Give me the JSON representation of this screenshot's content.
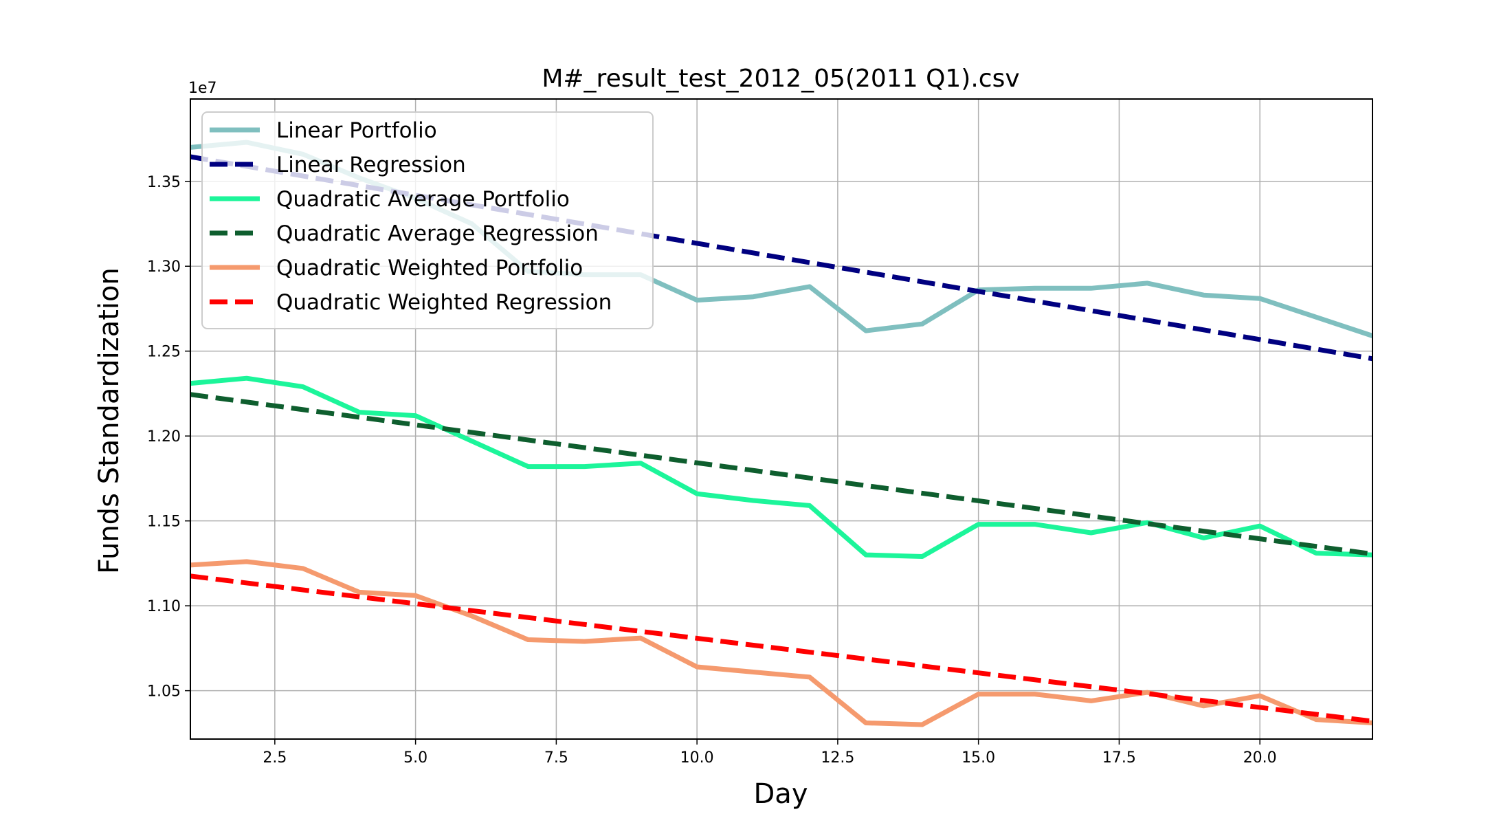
{
  "chart_data": {
    "type": "line",
    "title": "M#_result_test_2012_05(2011 Q1).csv",
    "xlabel": "Day",
    "ylabel": "Funds Standardization",
    "y_offset_label": "1e7",
    "xlim": [
      1,
      22
    ],
    "ylim": [
      1.0215,
      1.3985
    ],
    "x_ticks": [
      2.5,
      5.0,
      7.5,
      10.0,
      12.5,
      15.0,
      17.5,
      20.0
    ],
    "x_tick_labels": [
      "2.5",
      "5.0",
      "7.5",
      "10.0",
      "12.5",
      "15.0",
      "17.5",
      "20.0"
    ],
    "y_ticks": [
      1.05,
      1.1,
      1.15,
      1.2,
      1.25,
      1.3,
      1.35
    ],
    "y_tick_labels": [
      "1.05",
      "1.10",
      "1.15",
      "1.20",
      "1.25",
      "1.30",
      "1.35"
    ],
    "grid": true,
    "legend_position": "top-left",
    "x": [
      1,
      2,
      3,
      4,
      5,
      6,
      7,
      8,
      9,
      10,
      11,
      12,
      13,
      14,
      15,
      16,
      17,
      18,
      19,
      20,
      21,
      22
    ],
    "series": [
      {
        "name": "Linear Portfolio",
        "color": "#7fbfbf",
        "dash": false,
        "values": [
          1.37,
          1.373,
          1.366,
          1.352,
          1.34,
          1.325,
          1.297,
          1.295,
          1.295,
          1.28,
          1.282,
          1.288,
          1.262,
          1.266,
          1.286,
          1.287,
          1.287,
          1.29,
          1.283,
          1.281,
          1.27,
          1.259
        ]
      },
      {
        "name": "Linear Regression",
        "color": "#000080",
        "dash": true,
        "x": [
          1,
          22
        ],
        "values": [
          1.3645,
          1.2455
        ]
      },
      {
        "name": "Quadratic Average Portfolio",
        "color": "#1cf59a",
        "dash": false,
        "values": [
          1.231,
          1.234,
          1.229,
          1.214,
          1.212,
          1.197,
          1.182,
          1.182,
          1.184,
          1.166,
          1.162,
          1.159,
          1.13,
          1.129,
          1.148,
          1.148,
          1.143,
          1.149,
          1.14,
          1.147,
          1.131,
          1.13
        ]
      },
      {
        "name": "Quadratic Average Regression",
        "color": "#0e5e2e",
        "dash": true,
        "x": [
          1,
          22
        ],
        "values": [
          1.2245,
          1.1305
        ]
      },
      {
        "name": "Quadratic Weighted Portfolio",
        "color": "#f59a6e",
        "dash": false,
        "values": [
          1.124,
          1.126,
          1.122,
          1.108,
          1.106,
          1.094,
          1.08,
          1.079,
          1.081,
          1.064,
          1.061,
          1.058,
          1.031,
          1.03,
          1.048,
          1.048,
          1.044,
          1.049,
          1.041,
          1.047,
          1.033,
          1.031
        ]
      },
      {
        "name": "Quadratic Weighted Regression",
        "color": "#ff0000",
        "dash": true,
        "x": [
          1,
          22
        ],
        "values": [
          1.1175,
          1.032
        ]
      }
    ]
  }
}
